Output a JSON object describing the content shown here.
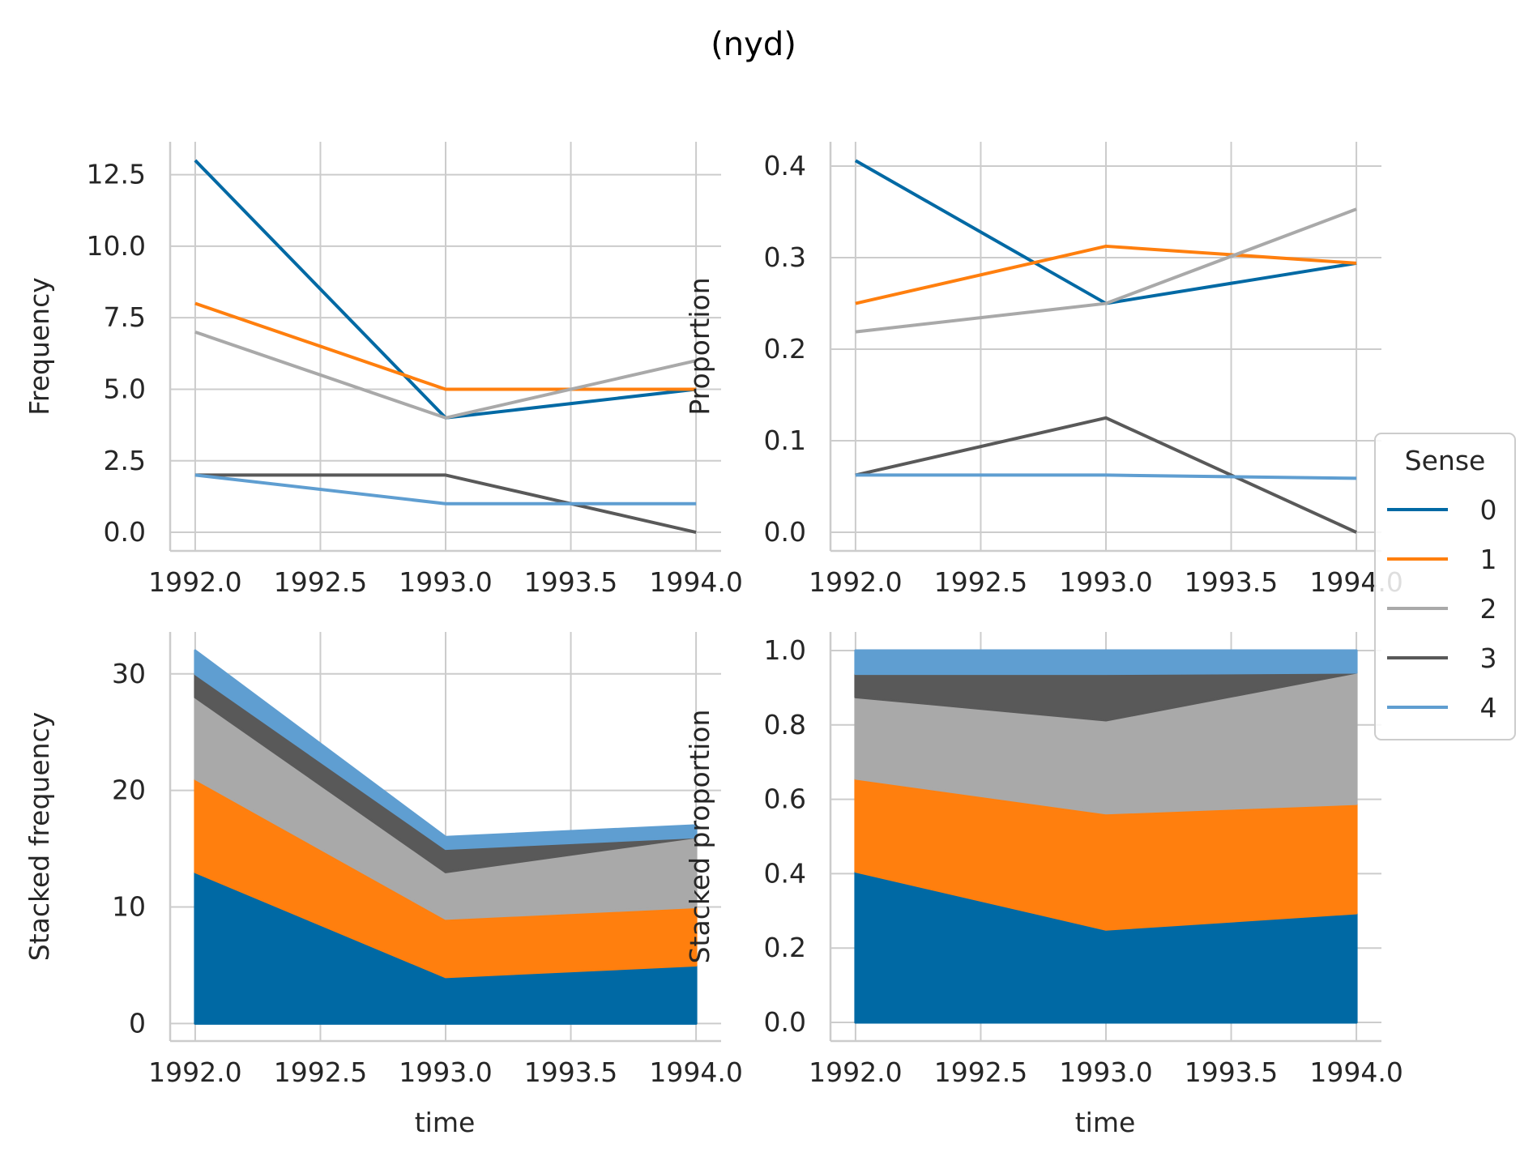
{
  "figure": {
    "title": "(nyd)"
  },
  "colors": {
    "0": "#0069a4",
    "1": "#ff7f0e",
    "2": "#a9a9a9",
    "3": "#595959",
    "4": "#5f9ed1"
  },
  "legend": {
    "title": "Sense",
    "entries": [
      "0",
      "1",
      "2",
      "3",
      "4"
    ],
    "placement": "right"
  },
  "chart_data": [
    {
      "type": "line",
      "id": "frequency",
      "x": [
        1992,
        1993,
        1994
      ],
      "xticks": [
        "1992.0",
        "1992.5",
        "1993.0",
        "1993.5",
        "1994.0"
      ],
      "yticks": [
        "0.0",
        "2.5",
        "5.0",
        "7.5",
        "10.0",
        "12.5"
      ],
      "xlabel": "",
      "ylabel": "Frequency",
      "xlim": [
        1991.9,
        1994.1
      ],
      "ylim": [
        -0.65,
        13.65
      ],
      "grid": true,
      "series": [
        {
          "name": "0",
          "values": [
            13,
            4,
            5
          ]
        },
        {
          "name": "1",
          "values": [
            8,
            5,
            5
          ]
        },
        {
          "name": "2",
          "values": [
            7,
            4,
            6
          ]
        },
        {
          "name": "3",
          "values": [
            2,
            2,
            0
          ]
        },
        {
          "name": "4",
          "values": [
            2,
            1,
            1
          ]
        }
      ]
    },
    {
      "type": "line",
      "id": "proportion",
      "x": [
        1992,
        1993,
        1994
      ],
      "xticks": [
        "1992.0",
        "1992.5",
        "1993.0",
        "1993.5",
        "1994.0"
      ],
      "yticks": [
        "0.0",
        "0.1",
        "0.2",
        "0.3",
        "0.4"
      ],
      "xlabel": "",
      "ylabel": "Proportion",
      "xlim": [
        1991.9,
        1994.1
      ],
      "ylim": [
        -0.0203,
        0.4266
      ],
      "grid": true,
      "series": [
        {
          "name": "0",
          "values": [
            0.406,
            0.25,
            0.294
          ]
        },
        {
          "name": "1",
          "values": [
            0.25,
            0.3125,
            0.294
          ]
        },
        {
          "name": "2",
          "values": [
            0.219,
            0.25,
            0.353
          ]
        },
        {
          "name": "3",
          "values": [
            0.0625,
            0.125,
            0.0
          ]
        },
        {
          "name": "4",
          "values": [
            0.0625,
            0.0625,
            0.059
          ]
        }
      ]
    },
    {
      "type": "area",
      "id": "stacked-frequency",
      "x": [
        1992,
        1993,
        1994
      ],
      "xticks": [
        "1992.0",
        "1992.5",
        "1993.0",
        "1993.5",
        "1994.0"
      ],
      "yticks": [
        "0",
        "10",
        "20",
        "30"
      ],
      "xlabel": "time",
      "ylabel": "Stacked frequency",
      "xlim": [
        1991.9,
        1994.1
      ],
      "ylim": [
        -1.5,
        33.6
      ],
      "grid": true,
      "stacked": true,
      "series": [
        {
          "name": "0",
          "values": [
            13,
            4,
            5
          ]
        },
        {
          "name": "1",
          "values": [
            8,
            5,
            5
          ]
        },
        {
          "name": "2",
          "values": [
            7,
            4,
            6
          ]
        },
        {
          "name": "3",
          "values": [
            2,
            2,
            0
          ]
        },
        {
          "name": "4",
          "values": [
            2,
            1,
            1
          ]
        }
      ]
    },
    {
      "type": "area",
      "id": "stacked-proportion",
      "x": [
        1992,
        1993,
        1994
      ],
      "xticks": [
        "1992.0",
        "1992.5",
        "1993.0",
        "1993.5",
        "1994.0"
      ],
      "yticks": [
        "0.0",
        "0.2",
        "0.4",
        "0.6",
        "0.8",
        "1.0"
      ],
      "xlabel": "time",
      "ylabel": "Stacked proportion",
      "xlim": [
        1991.9,
        1994.1
      ],
      "ylim": [
        -0.05,
        1.05
      ],
      "grid": true,
      "stacked": true,
      "series": [
        {
          "name": "0",
          "values": [
            0.406,
            0.25,
            0.294
          ]
        },
        {
          "name": "1",
          "values": [
            0.25,
            0.3125,
            0.294
          ]
        },
        {
          "name": "2",
          "values": [
            0.219,
            0.25,
            0.353
          ]
        },
        {
          "name": "3",
          "values": [
            0.0625,
            0.125,
            0.0
          ]
        },
        {
          "name": "4",
          "values": [
            0.0625,
            0.0625,
            0.059
          ]
        }
      ]
    }
  ]
}
